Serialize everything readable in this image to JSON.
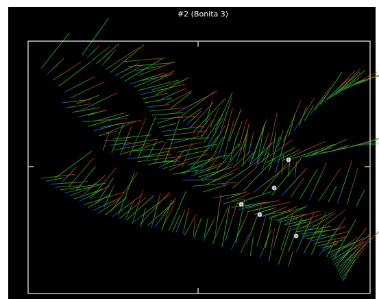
{
  "title": "#2 (Bonita 3)"
}
